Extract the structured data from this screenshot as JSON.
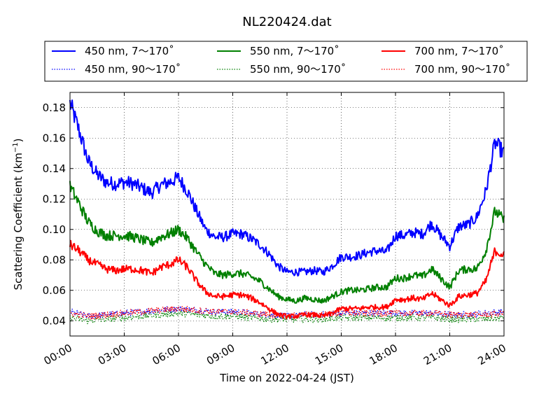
{
  "chart_data": {
    "type": "line",
    "title": "NL220424.dat",
    "xlabel": "Time on 2022-04-24 (JST)",
    "ylabel": "Scattering Coefficient (km",
    "ylabel_sup": "−1",
    "ylabel_close": ")",
    "x_unit": "hours",
    "xlim": [
      0,
      24
    ],
    "ylim": [
      0.03,
      0.19
    ],
    "x_ticks": [
      0,
      3,
      6,
      9,
      12,
      15,
      18,
      21,
      24
    ],
    "x_tick_labels": [
      "00:00",
      "03:00",
      "06:00",
      "09:00",
      "12:00",
      "15:00",
      "18:00",
      "21:00",
      "24:00"
    ],
    "y_ticks": [
      0.04,
      0.06,
      0.08,
      0.1,
      0.12,
      0.14,
      0.16,
      0.18
    ],
    "y_tick_labels": [
      "0.04",
      "0.06",
      "0.08",
      "0.10",
      "0.12",
      "0.14",
      "0.16",
      "0.18"
    ],
    "grid": true,
    "legend_position": "top",
    "series": [
      {
        "name": "450 nm, 7～170˚",
        "color": "#0000ff",
        "style": "solid",
        "x": [
          0,
          0.5,
          1,
          1.5,
          2,
          2.5,
          3,
          3.5,
          4,
          4.5,
          5,
          5.5,
          6,
          6.5,
          7,
          7.5,
          8,
          8.5,
          9,
          9.5,
          10,
          10.5,
          11,
          11.5,
          12,
          12.5,
          13,
          13.5,
          14,
          14.5,
          15,
          15.5,
          16,
          16.5,
          17,
          17.5,
          18,
          18.5,
          19,
          19.5,
          20,
          20.5,
          21,
          21.5,
          22,
          22.5,
          23,
          23.5,
          24
        ],
        "y": [
          0.183,
          0.165,
          0.145,
          0.136,
          0.131,
          0.13,
          0.131,
          0.13,
          0.127,
          0.124,
          0.129,
          0.131,
          0.134,
          0.125,
          0.112,
          0.1,
          0.095,
          0.095,
          0.097,
          0.097,
          0.094,
          0.09,
          0.084,
          0.076,
          0.072,
          0.072,
          0.072,
          0.073,
          0.072,
          0.076,
          0.082,
          0.082,
          0.083,
          0.085,
          0.086,
          0.085,
          0.096,
          0.096,
          0.098,
          0.097,
          0.104,
          0.096,
          0.089,
          0.102,
          0.103,
          0.108,
          0.125,
          0.157,
          0.15
        ]
      },
      {
        "name": "450 nm, 90～170˚",
        "color": "#0000ff",
        "style": "dotted",
        "x": [
          0,
          1,
          2,
          3,
          4,
          5,
          6,
          7,
          8,
          9,
          10,
          11,
          12,
          13,
          14,
          15,
          16,
          17,
          18,
          19,
          20,
          21,
          22,
          23,
          24
        ],
        "y": [
          0.046,
          0.043,
          0.044,
          0.045,
          0.046,
          0.047,
          0.048,
          0.047,
          0.046,
          0.046,
          0.045,
          0.044,
          0.043,
          0.044,
          0.044,
          0.045,
          0.045,
          0.045,
          0.045,
          0.045,
          0.045,
          0.044,
          0.044,
          0.045,
          0.046
        ]
      },
      {
        "name": "550 nm, 7～170˚",
        "color": "#008000",
        "style": "solid",
        "x": [
          0,
          0.5,
          1,
          1.5,
          2,
          2.5,
          3,
          3.5,
          4,
          4.5,
          5,
          5.5,
          6,
          6.5,
          7,
          7.5,
          8,
          8.5,
          9,
          9.5,
          10,
          10.5,
          11,
          11.5,
          12,
          12.5,
          13,
          13.5,
          14,
          14.5,
          15,
          15.5,
          16,
          16.5,
          17,
          17.5,
          18,
          18.5,
          19,
          19.5,
          20,
          20.5,
          21,
          21.5,
          22,
          22.5,
          23,
          23.5,
          24
        ],
        "y": [
          0.128,
          0.117,
          0.105,
          0.099,
          0.096,
          0.096,
          0.096,
          0.095,
          0.093,
          0.091,
          0.095,
          0.097,
          0.1,
          0.094,
          0.085,
          0.077,
          0.071,
          0.07,
          0.071,
          0.071,
          0.069,
          0.066,
          0.061,
          0.056,
          0.054,
          0.053,
          0.055,
          0.054,
          0.053,
          0.056,
          0.059,
          0.06,
          0.06,
          0.061,
          0.062,
          0.062,
          0.068,
          0.068,
          0.07,
          0.069,
          0.074,
          0.068,
          0.062,
          0.073,
          0.074,
          0.074,
          0.086,
          0.112,
          0.106
        ]
      },
      {
        "name": "550 nm, 90～170˚",
        "color": "#008000",
        "style": "dotted",
        "x": [
          0,
          1,
          2,
          3,
          4,
          5,
          6,
          7,
          8,
          9,
          10,
          11,
          12,
          13,
          14,
          15,
          16,
          17,
          18,
          19,
          20,
          21,
          22,
          23,
          24
        ],
        "y": [
          0.042,
          0.04,
          0.041,
          0.042,
          0.043,
          0.044,
          0.045,
          0.044,
          0.043,
          0.043,
          0.042,
          0.041,
          0.041,
          0.041,
          0.041,
          0.042,
          0.042,
          0.042,
          0.042,
          0.042,
          0.042,
          0.041,
          0.041,
          0.041,
          0.042
        ]
      },
      {
        "name": "700 nm, 7～170˚",
        "color": "#ff0000",
        "style": "solid",
        "x": [
          0,
          0.5,
          1,
          1.5,
          2,
          2.5,
          3,
          3.5,
          4,
          4.5,
          5,
          5.5,
          6,
          6.5,
          7,
          7.5,
          8,
          8.5,
          9,
          9.5,
          10,
          10.5,
          11,
          11.5,
          12,
          12.5,
          13,
          13.5,
          14,
          14.5,
          15,
          15.5,
          16,
          16.5,
          17,
          17.5,
          18,
          18.5,
          19,
          19.5,
          20,
          20.5,
          21,
          21.5,
          22,
          22.5,
          23,
          23.5,
          24
        ],
        "y": [
          0.09,
          0.086,
          0.08,
          0.077,
          0.074,
          0.073,
          0.074,
          0.074,
          0.073,
          0.071,
          0.075,
          0.077,
          0.08,
          0.075,
          0.066,
          0.059,
          0.056,
          0.056,
          0.057,
          0.057,
          0.055,
          0.052,
          0.048,
          0.044,
          0.043,
          0.043,
          0.044,
          0.044,
          0.043,
          0.045,
          0.048,
          0.048,
          0.048,
          0.049,
          0.049,
          0.049,
          0.054,
          0.054,
          0.055,
          0.054,
          0.058,
          0.054,
          0.05,
          0.056,
          0.057,
          0.058,
          0.066,
          0.086,
          0.083
        ]
      },
      {
        "name": "700 nm, 90～170˚",
        "color": "#ff0000",
        "style": "dotted",
        "x": [
          0,
          1,
          2,
          3,
          4,
          5,
          6,
          7,
          8,
          9,
          10,
          11,
          12,
          13,
          14,
          15,
          16,
          17,
          18,
          19,
          20,
          21,
          22,
          23,
          24
        ],
        "y": [
          0.045,
          0.043,
          0.044,
          0.045,
          0.046,
          0.047,
          0.048,
          0.047,
          0.046,
          0.046,
          0.045,
          0.044,
          0.043,
          0.044,
          0.044,
          0.045,
          0.045,
          0.045,
          0.045,
          0.045,
          0.045,
          0.044,
          0.044,
          0.044,
          0.045
        ]
      }
    ]
  }
}
